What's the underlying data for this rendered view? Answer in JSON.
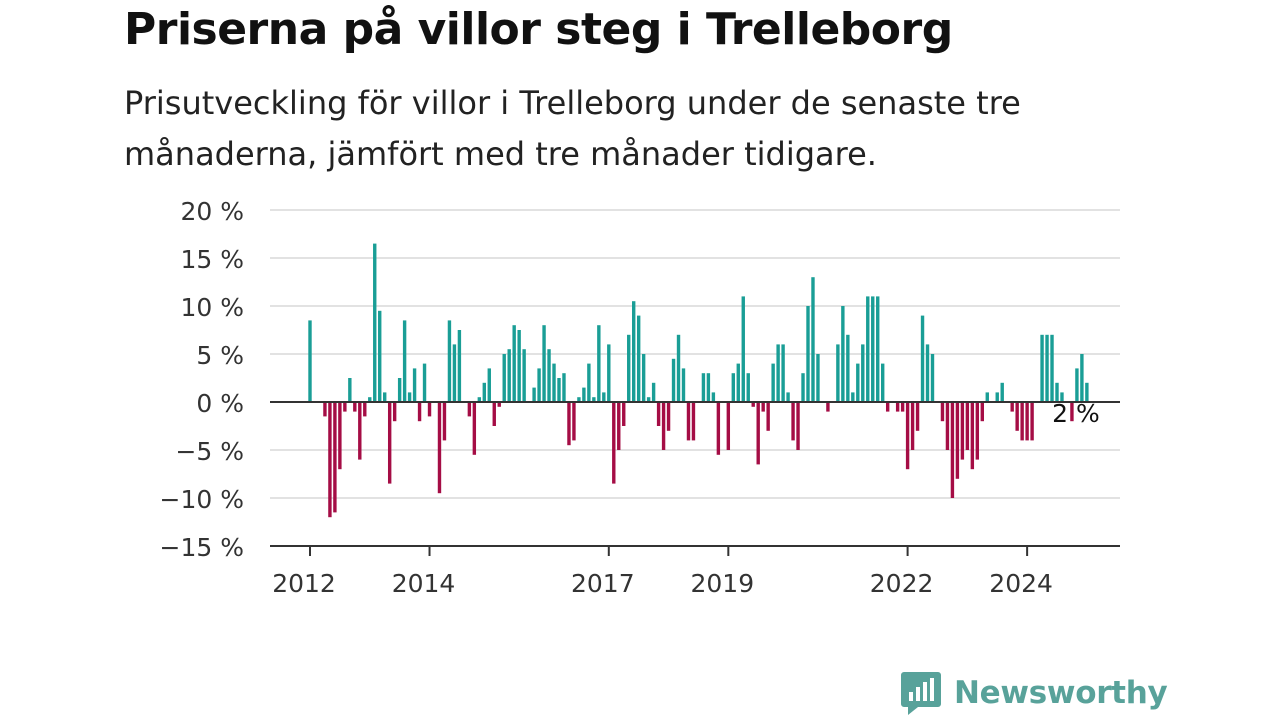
{
  "title": "Priserna på villor steg i Trelleborg",
  "subtitle": "Prisutveckling för villor i Trelleborg under de senaste tre månaderna, jämfört med tre månader tidigare.",
  "brand": {
    "name": "Newsworthy",
    "icon": "newsworthy-logo-icon",
    "color": "#58a29a"
  },
  "colors": {
    "positive": "#1a9e96",
    "negative": "#a50d45",
    "grid": "#d9d9d9",
    "zero": "#333333"
  },
  "chart_data": {
    "type": "bar",
    "x_start": "2012-01",
    "x_step": "month",
    "ylim": [
      -15,
      20
    ],
    "y_ticks": [
      20,
      15,
      10,
      5,
      0,
      -5,
      -10,
      -15
    ],
    "y_tick_labels": [
      "20 %",
      "15 %",
      "10 %",
      "5 %",
      "0 %",
      "−5 %",
      "−10 %",
      "−15 %"
    ],
    "x_tick_labels": [
      {
        "label": "2012",
        "date": "2012-01"
      },
      {
        "label": "2014",
        "date": "2014-01"
      },
      {
        "label": "2017",
        "date": "2017-01"
      },
      {
        "label": "2019",
        "date": "2019-01"
      },
      {
        "label": "2022",
        "date": "2022-01"
      },
      {
        "label": "2024",
        "date": "2024-01"
      }
    ],
    "annotation": {
      "label": "2 %",
      "date": "2024-10"
    },
    "values": [
      8.5,
      0,
      0,
      -1.5,
      -12,
      -11.5,
      -7,
      -1,
      2.5,
      -1,
      -6,
      -1.5,
      0.5,
      16.5,
      9.5,
      1,
      -8.5,
      -2,
      2.5,
      8.5,
      1,
      3.5,
      -2,
      4,
      -1.5,
      0,
      -9.5,
      -4,
      8.5,
      6,
      7.5,
      0,
      -1.5,
      -5.5,
      0.5,
      2,
      3.5,
      -2.5,
      -0.5,
      5,
      5.5,
      8,
      7.5,
      5.5,
      0,
      1.5,
      3.5,
      8,
      5.5,
      4,
      2.5,
      3,
      -4.5,
      -4,
      0.5,
      1.5,
      4,
      0.5,
      8,
      1,
      6,
      -8.5,
      -5,
      -2.5,
      7,
      10.5,
      9,
      5,
      0.5,
      2,
      -2.5,
      -5,
      -3,
      4.5,
      7,
      3.5,
      -4,
      -4,
      0,
      3,
      3,
      1,
      -5.5,
      0,
      -5,
      3,
      4,
      11,
      3,
      -0.5,
      -6.5,
      -1,
      -3,
      4,
      6,
      6,
      1,
      -4,
      -5,
      3,
      10,
      13,
      5,
      0,
      -1,
      0,
      6,
      10,
      7,
      1,
      4,
      6,
      11,
      11,
      11,
      4,
      -1,
      0,
      -1,
      -1,
      -7,
      -5,
      -3,
      9,
      6,
      5,
      0,
      -2,
      -5,
      -10,
      -8,
      -6,
      -5,
      -7,
      -6,
      -2,
      1,
      0,
      1,
      2,
      0,
      -1,
      -3,
      -4,
      -4,
      -4,
      0,
      7,
      7,
      7,
      2,
      1,
      0,
      -2,
      3.5,
      5,
      2
    ]
  }
}
